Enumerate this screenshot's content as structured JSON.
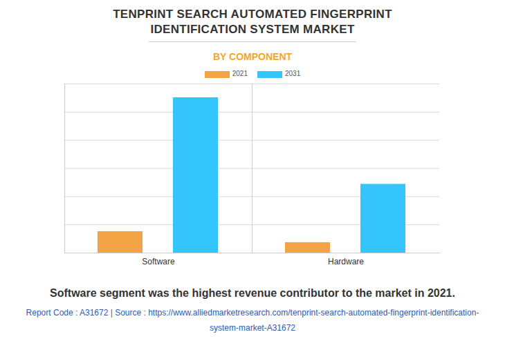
{
  "chart_data": {
    "type": "bar",
    "title": "TENPRINT SEARCH AUTOMATED FINGERPRINT IDENTIFICATION SYSTEM MARKET",
    "subtitle": "BY COMPONENT",
    "categories": [
      "Software",
      "Hardware"
    ],
    "series": [
      {
        "name": "2021",
        "color": "#f2a444",
        "values": [
          0.76,
          0.37
        ]
      },
      {
        "name": "2031",
        "color": "#33c5fb",
        "values": [
          5.51,
          2.44
        ]
      }
    ],
    "ylim": [
      0,
      6
    ],
    "yticks": [
      0,
      1,
      2,
      3,
      4,
      5,
      6
    ],
    "grid": true,
    "tick_labels": "x",
    "legend": "top",
    "caption": "Software segment was the highest revenue contributor to the market in 2021.",
    "footnote": "Report Code : A31672  |  Source : https://www.alliedmarketresearch.com/tenprint-search-automated-fingerprint-identification-system-market-A31672"
  }
}
